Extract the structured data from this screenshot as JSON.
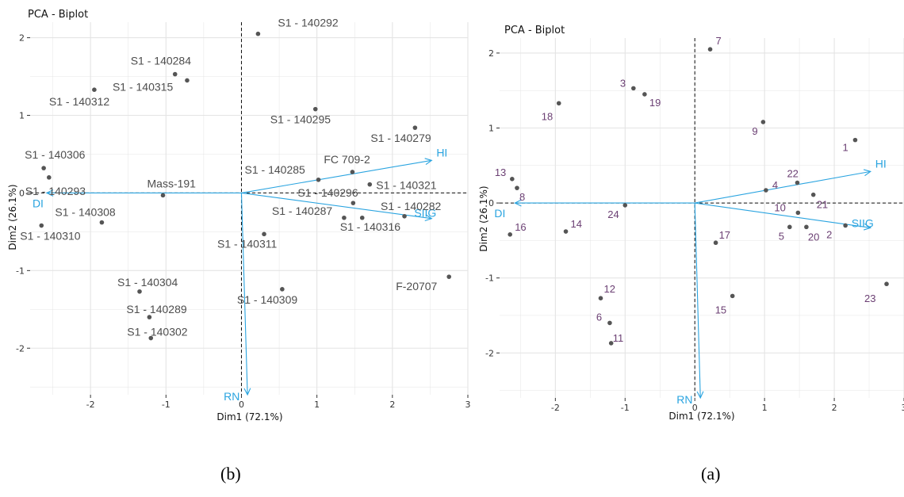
{
  "colors": {
    "point": "#555555",
    "vector": "#2aa4e0",
    "label_b": "#4d4d4d",
    "label_a": "#6b3f73",
    "grid": "#e4e4e4"
  },
  "chart_data": [
    {
      "type": "scatter",
      "panel_caption": "(b)",
      "title": "PCA - Biplot",
      "xlabel": "Dim1 (72.1%)",
      "ylabel": "Dim2 (26.1%)",
      "xlim": [
        -2.8,
        3.0
      ],
      "ylim": [
        -2.6,
        2.2
      ],
      "xticks": [
        -2,
        -1,
        0,
        1,
        2,
        3
      ],
      "yticks": [
        -2,
        -1,
        0,
        1,
        2
      ],
      "grid": true,
      "points": [
        {
          "label": "S1 - 140292",
          "x": 0.22,
          "y": 2.05,
          "dx": 25,
          "dy": -9
        },
        {
          "label": "S1 - 140284",
          "x": -0.88,
          "y": 1.53,
          "dx": -56,
          "dy": -12
        },
        {
          "label": "S1 - 140315",
          "x": -0.72,
          "y": 1.45,
          "dx": -94,
          "dy": 13
        },
        {
          "label": "S1 - 140312",
          "x": -1.95,
          "y": 1.33,
          "dx": -57,
          "dy": 20
        },
        {
          "label": "S1 - 140295",
          "x": 0.98,
          "y": 1.08,
          "dx": -57,
          "dy": 18
        },
        {
          "label": "S1 - 140279",
          "x": 2.3,
          "y": 0.84,
          "dx": -56,
          "dy": 18
        },
        {
          "label": "S1 - 140306",
          "x": -2.62,
          "y": 0.32,
          "dx": -24,
          "dy": -12
        },
        {
          "label": "S1 - 140293",
          "x": -2.55,
          "y": 0.2,
          "dx": -30,
          "dy": 22
        },
        {
          "label": "FC 709-2",
          "x": 1.47,
          "y": 0.27,
          "dx": -36,
          "dy": -11
        },
        {
          "label": "S1 - 140285",
          "x": 1.02,
          "y": 0.17,
          "dx": -93,
          "dy": -8
        },
        {
          "label": "S1 - 140321",
          "x": 1.7,
          "y": 0.11,
          "dx": 8,
          "dy": 6
        },
        {
          "label": "S1 - 140296",
          "x": 1.48,
          "y": -0.13,
          "dx": -70,
          "dy": -8
        },
        {
          "label": "Mass-191",
          "x": -1.04,
          "y": -0.03,
          "dx": -20,
          "dy": -10
        },
        {
          "label": "S1 - 140282",
          "x": 2.16,
          "y": -0.3,
          "dx": -30,
          "dy": -8
        },
        {
          "label": "S1 - 140287",
          "x": 1.36,
          "y": -0.32,
          "dx": -91,
          "dy": -4
        },
        {
          "label": "S1 - 140316",
          "x": 1.6,
          "y": -0.32,
          "dx": -28,
          "dy": 16
        },
        {
          "label": "S1 - 140308",
          "x": -1.85,
          "y": -0.38,
          "dx": -59,
          "dy": -8
        },
        {
          "label": "S1 - 140310",
          "x": -2.65,
          "y": -0.42,
          "dx": -27,
          "dy": 18
        },
        {
          "label": "S1 - 140311",
          "x": 0.3,
          "y": -0.53,
          "dx": -59,
          "dy": 17
        },
        {
          "label": "S1 - 140304",
          "x": -1.35,
          "y": -1.27,
          "dx": -28,
          "dy": -7
        },
        {
          "label": "S1 - 140309",
          "x": 0.54,
          "y": -1.24,
          "dx": -57,
          "dy": 18
        },
        {
          "label": "F-20707",
          "x": 2.75,
          "y": -1.08,
          "dx": -67,
          "dy": 17
        },
        {
          "label": "S1 - 140289",
          "x": -1.22,
          "y": -1.6,
          "dx": -29,
          "dy": -5
        },
        {
          "label": "S1 - 140302",
          "x": -1.2,
          "y": -1.87,
          "dx": -30,
          "dy": -3
        }
      ],
      "vectors": [
        {
          "label": "HI",
          "x": 2.52,
          "y": 0.42,
          "dx": 6,
          "dy": -5
        },
        {
          "label": "SIIG",
          "x": 2.52,
          "y": -0.33,
          "dx": -22,
          "dy": -2
        },
        {
          "label": "DI",
          "x": -2.58,
          "y": 0.0,
          "dx": -18,
          "dy": 18
        },
        {
          "label": "RN",
          "x": 0.08,
          "y": -2.6,
          "dx": -30,
          "dy": 7
        }
      ]
    },
    {
      "type": "scatter",
      "panel_caption": "(a)",
      "title": "PCA - Biplot",
      "xlabel": "Dim1 (72.1%)",
      "ylabel": "Dim2 (26.1%)",
      "xlim": [
        -2.8,
        3.0
      ],
      "ylim": [
        -2.6,
        2.2
      ],
      "xticks": [
        -2,
        -1,
        0,
        1,
        2,
        3
      ],
      "yticks": [
        -2,
        -1,
        0,
        1,
        2
      ],
      "grid": true,
      "points": [
        {
          "label": "7",
          "x": 0.22,
          "y": 2.05,
          "dx": 7,
          "dy": -6
        },
        {
          "label": "3",
          "x": -0.88,
          "y": 1.53,
          "dx": -17,
          "dy": -2
        },
        {
          "label": "19",
          "x": -0.72,
          "y": 1.45,
          "dx": 6,
          "dy": 15
        },
        {
          "label": "18",
          "x": -1.95,
          "y": 1.33,
          "dx": -22,
          "dy": 21
        },
        {
          "label": "9",
          "x": 0.98,
          "y": 1.08,
          "dx": -14,
          "dy": 16
        },
        {
          "label": "1",
          "x": 2.3,
          "y": 0.84,
          "dx": -16,
          "dy": 14
        },
        {
          "label": "13",
          "x": -2.62,
          "y": 0.32,
          "dx": -22,
          "dy": -4
        },
        {
          "label": "22",
          "x": 1.47,
          "y": 0.27,
          "dx": -13,
          "dy": -7
        },
        {
          "label": "4",
          "x": 1.02,
          "y": 0.17,
          "dx": 8,
          "dy": -2
        },
        {
          "label": "21",
          "x": 1.7,
          "y": 0.11,
          "dx": 4,
          "dy": 17
        },
        {
          "label": "8",
          "x": -2.55,
          "y": 0.2,
          "dx": 3,
          "dy": 16
        },
        {
          "label": "10",
          "x": 1.48,
          "y": -0.13,
          "dx": -30,
          "dy": -2
        },
        {
          "label": "24",
          "x": -1.0,
          "y": -0.03,
          "dx": -22,
          "dy": 16
        },
        {
          "label": "5",
          "x": 1.36,
          "y": -0.32,
          "dx": -14,
          "dy": 16
        },
        {
          "label": "20",
          "x": 1.6,
          "y": -0.32,
          "dx": 2,
          "dy": 17
        },
        {
          "label": "2",
          "x": 2.16,
          "y": -0.3,
          "dx": -24,
          "dy": 16
        },
        {
          "label": "16",
          "x": -2.65,
          "y": -0.42,
          "dx": 6,
          "dy": -5
        },
        {
          "label": "14",
          "x": -1.85,
          "y": -0.38,
          "dx": 6,
          "dy": -5
        },
        {
          "label": "17",
          "x": 0.3,
          "y": -0.53,
          "dx": 4,
          "dy": -5
        },
        {
          "label": "12",
          "x": -1.35,
          "y": -1.27,
          "dx": 4,
          "dy": -7
        },
        {
          "label": "15",
          "x": 0.54,
          "y": -1.24,
          "dx": -22,
          "dy": 22
        },
        {
          "label": "23",
          "x": 2.75,
          "y": -1.08,
          "dx": -28,
          "dy": 23
        },
        {
          "label": "6",
          "x": -1.22,
          "y": -1.6,
          "dx": -17,
          "dy": -3
        },
        {
          "label": "11",
          "x": -1.2,
          "y": -1.87,
          "dx": 2,
          "dy": -2
        }
      ],
      "vectors": [
        {
          "label": "HI",
          "x": 2.52,
          "y": 0.42,
          "dx": 6,
          "dy": -5
        },
        {
          "label": "SIIG",
          "x": 2.52,
          "y": -0.33,
          "dx": -24,
          "dy": -1
        },
        {
          "label": "DI",
          "x": -2.58,
          "y": 0.0,
          "dx": -26,
          "dy": 18
        },
        {
          "label": "RN",
          "x": 0.08,
          "y": -2.6,
          "dx": -30,
          "dy": 7
        }
      ]
    }
  ]
}
